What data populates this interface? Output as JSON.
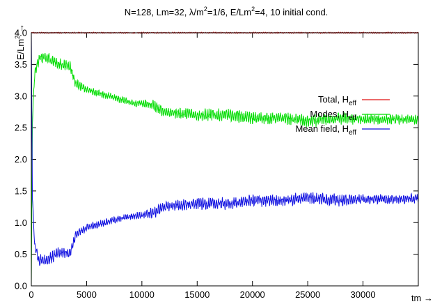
{
  "chart_data": {
    "type": "line",
    "title": {
      "prefix": "N=128, Lm=32, λ/m",
      "sup1": "2",
      "middle": "=1/6, E/Lm",
      "sup2": "2",
      "suffix": "=4, 10 initial cond."
    },
    "ylabel": {
      "base": "E/Lm",
      "sup": "2",
      "arrow": "→"
    },
    "xlabel": "tm →",
    "xlim": [
      0,
      35000
    ],
    "ylim": [
      0.0,
      4.0
    ],
    "xticks": [
      "0",
      "5000",
      "10000",
      "15000",
      "20000",
      "25000",
      "30000"
    ],
    "xtick_values": [
      0,
      5000,
      10000,
      15000,
      20000,
      25000,
      30000
    ],
    "yticks": [
      "0.0",
      "0.5",
      "1.0",
      "1.5",
      "2.0",
      "2.5",
      "3.0",
      "3.5",
      "4.0"
    ],
    "ytick_values": [
      0.0,
      0.5,
      1.0,
      1.5,
      2.0,
      2.5,
      3.0,
      3.5,
      4.0
    ],
    "legend_position": "top-right",
    "series": [
      {
        "name": "Total, H",
        "sub": "eff",
        "color": "#e01010",
        "x": [
          0,
          5000,
          10000,
          15000,
          20000,
          25000,
          30000,
          35000
        ],
        "y": [
          4.0,
          4.0,
          4.0,
          4.0,
          4.0,
          4.0,
          4.0,
          4.0
        ],
        "amplitude": [
          0.01,
          0.01,
          0.01,
          0.01,
          0.01,
          0.01,
          0.01,
          0.01
        ]
      },
      {
        "name": "Modes, H",
        "sub": "eff",
        "color": "#00dd00",
        "x": [
          0,
          100,
          300,
          700,
          1500,
          2500,
          3500,
          4000,
          5000,
          7000,
          9000,
          10000,
          11000,
          12000,
          15000,
          18000,
          20000,
          23000,
          25000,
          28000,
          30000,
          33000,
          35000
        ],
        "y": [
          0.0,
          2.6,
          3.35,
          3.6,
          3.6,
          3.5,
          3.48,
          3.2,
          3.1,
          3.0,
          2.9,
          2.88,
          2.85,
          2.75,
          2.7,
          2.7,
          2.65,
          2.65,
          2.6,
          2.65,
          2.63,
          2.63,
          2.62
        ],
        "amplitude": [
          0.0,
          0.05,
          0.08,
          0.1,
          0.1,
          0.1,
          0.08,
          0.08,
          0.06,
          0.06,
          0.06,
          0.06,
          0.1,
          0.08,
          0.1,
          0.1,
          0.1,
          0.1,
          0.1,
          0.1,
          0.08,
          0.08,
          0.08
        ]
      },
      {
        "name": "Mean field, H",
        "sub": "eff",
        "color": "#1010e0",
        "x": [
          0,
          100,
          300,
          700,
          1500,
          2500,
          3500,
          4000,
          5000,
          7000,
          9000,
          10000,
          11000,
          12000,
          15000,
          18000,
          20000,
          23000,
          25000,
          28000,
          30000,
          33000,
          35000
        ],
        "y": [
          4.0,
          1.4,
          0.65,
          0.4,
          0.42,
          0.52,
          0.52,
          0.8,
          0.92,
          1.02,
          1.1,
          1.12,
          1.15,
          1.25,
          1.3,
          1.3,
          1.35,
          1.35,
          1.4,
          1.35,
          1.37,
          1.37,
          1.38
        ],
        "amplitude": [
          0.0,
          0.05,
          0.08,
          0.1,
          0.1,
          0.1,
          0.08,
          0.08,
          0.06,
          0.06,
          0.06,
          0.06,
          0.1,
          0.08,
          0.1,
          0.1,
          0.1,
          0.1,
          0.1,
          0.1,
          0.08,
          0.08,
          0.08
        ]
      }
    ]
  }
}
